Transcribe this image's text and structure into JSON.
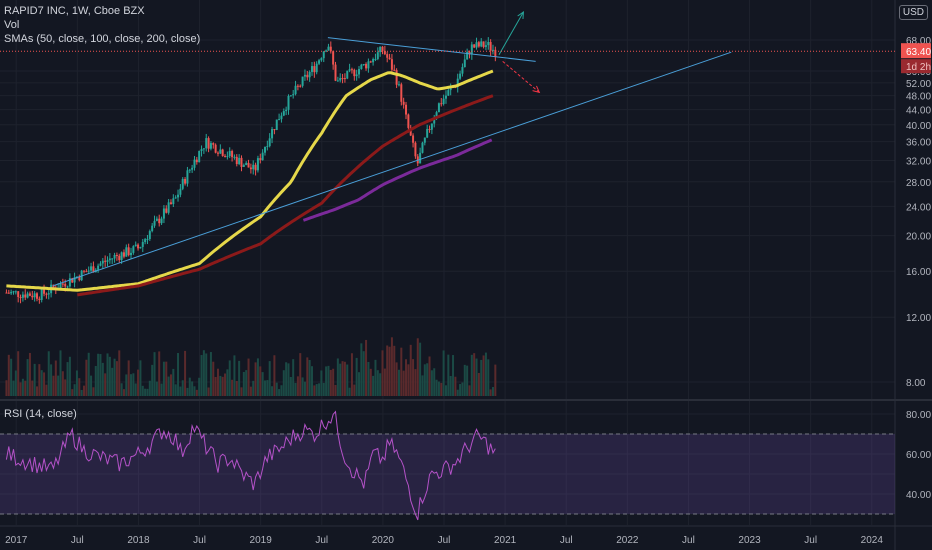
{
  "header": {
    "title": "RAPID7 INC, 1W, Cboe BZX",
    "vol_label": "Vol",
    "sma_label": "SMAs (50, close, 100, close, 200, close)",
    "currency": "USD"
  },
  "rsi_panel": {
    "label": "RSI (14, close)"
  },
  "chart_data": [
    {
      "type": "candlestick",
      "title": "RAPID7 INC, 1W, Cboe BZX",
      "x_axis": {
        "ticks": [
          "2017",
          "Jul",
          "2018",
          "Jul",
          "2019",
          "Jul",
          "2020",
          "Jul",
          "2021",
          "Jul",
          "2022",
          "Jul",
          "2023",
          "Jul",
          "2024"
        ]
      },
      "y_axis": {
        "scale": "log",
        "ticks": [
          8,
          12,
          16,
          20,
          24,
          28,
          32,
          36,
          40,
          44,
          48,
          52,
          56,
          68
        ],
        "tick_labels": [
          "8.00",
          "12.00",
          "16.00",
          "20.00",
          "24.00",
          "28.00",
          "32.00",
          "36.00",
          "40.00",
          "44.00",
          "48.00",
          "52.00",
          "56.00",
          "68.00"
        ]
      },
      "price_anchors": {
        "t": [
          2016.92,
          2017.2,
          2017.5,
          2017.8,
          2018.0,
          2018.3,
          2018.55,
          2018.75,
          2018.95,
          2019.2,
          2019.45,
          2019.55,
          2019.62,
          2019.85,
          2020.0,
          2020.1,
          2020.2,
          2020.28,
          2020.45,
          2020.6,
          2020.72,
          2020.85,
          2020.92
        ],
        "close": [
          14.0,
          13.8,
          15.5,
          17.5,
          18.5,
          25.0,
          36.0,
          33.0,
          30.0,
          45.0,
          58.0,
          67.0,
          52.0,
          58.0,
          64.0,
          55.0,
          40.0,
          31.0,
          45.0,
          52.0,
          65.0,
          66.0,
          63.4
        ]
      },
      "last_price": {
        "value": 63.4,
        "label": "63.40",
        "sublabel": "1d 2h"
      },
      "sma": [
        {
          "period": 50,
          "color": "#e6d84a",
          "t": [
            2016.92,
            2017.5,
            2018.0,
            2018.5,
            2019.0,
            2019.25,
            2019.5,
            2019.7,
            2019.9,
            2020.05,
            2020.15,
            2020.3,
            2020.45,
            2020.6,
            2020.75,
            2020.9
          ],
          "v": [
            14.6,
            14.2,
            14.8,
            16.8,
            22.5,
            28.0,
            38.0,
            48.0,
            53.0,
            55.5,
            54.5,
            52.0,
            50.0,
            51.0,
            53.5,
            56.0
          ]
        },
        {
          "period": 100,
          "color": "#8c1a1a",
          "t": [
            2017.5,
            2018.0,
            2018.5,
            2019.0,
            2019.5,
            2020.0,
            2020.3,
            2020.6,
            2020.9
          ],
          "v": [
            13.8,
            14.6,
            16.2,
            19.0,
            24.5,
            35.0,
            40.0,
            44.0,
            48.0
          ]
        },
        {
          "period": 200,
          "color": "#7b2a9a",
          "t": [
            2019.35,
            2019.6,
            2019.8,
            2020.0,
            2020.3,
            2020.6,
            2020.9
          ],
          "v": [
            22.0,
            23.5,
            25.0,
            27.5,
            30.5,
            33.0,
            36.5
          ]
        }
      ],
      "trendlines": [
        {
          "name": "resistance",
          "color": "#4a9fd8",
          "t": [
            2019.55,
            2021.25
          ],
          "v": [
            69.0,
            59.5
          ]
        },
        {
          "name": "support",
          "color": "#4a9fd8",
          "t": [
            2017.3,
            2022.85
          ],
          "v": [
            14.6,
            63.0
          ]
        }
      ],
      "arrows": [
        {
          "direction": "up",
          "color": "#26a69a",
          "t": [
            2020.95,
            2021.15
          ],
          "v": [
            62.0,
            81.0
          ]
        },
        {
          "direction": "down",
          "color": "#f23645",
          "t": [
            2020.98,
            2021.28
          ],
          "v": [
            59.5,
            49.0
          ]
        }
      ]
    },
    {
      "type": "line",
      "title": "RSI (14, close)",
      "y_axis": {
        "ticks": [
          40,
          60,
          80
        ],
        "tick_labels": [
          "40.00",
          "60.00",
          "80.00"
        ],
        "band": [
          30,
          70
        ]
      },
      "t": [
        2016.92,
        2017.1,
        2017.3,
        2017.45,
        2017.55,
        2017.7,
        2017.85,
        2018.0,
        2018.1,
        2018.2,
        2018.3,
        2018.35,
        2018.45,
        2018.55,
        2018.65,
        2018.75,
        2018.85,
        2018.95,
        2019.05,
        2019.15,
        2019.25,
        2019.35,
        2019.45,
        2019.52,
        2019.6,
        2019.68,
        2019.75,
        2019.85,
        2019.92,
        2020.0,
        2020.05,
        2020.1,
        2020.15,
        2020.22,
        2020.28,
        2020.33,
        2020.4,
        2020.5,
        2020.6,
        2020.7,
        2020.78,
        2020.85,
        2020.92
      ],
      "values": [
        60,
        56,
        52,
        70,
        62,
        58,
        55,
        60,
        65,
        72,
        68,
        60,
        74,
        64,
        55,
        58,
        50,
        45,
        58,
        62,
        68,
        72,
        70,
        76,
        80,
        60,
        52,
        45,
        60,
        57,
        65,
        62,
        55,
        42,
        30,
        40,
        50,
        52,
        56,
        64,
        69,
        65,
        60
      ]
    }
  ]
}
